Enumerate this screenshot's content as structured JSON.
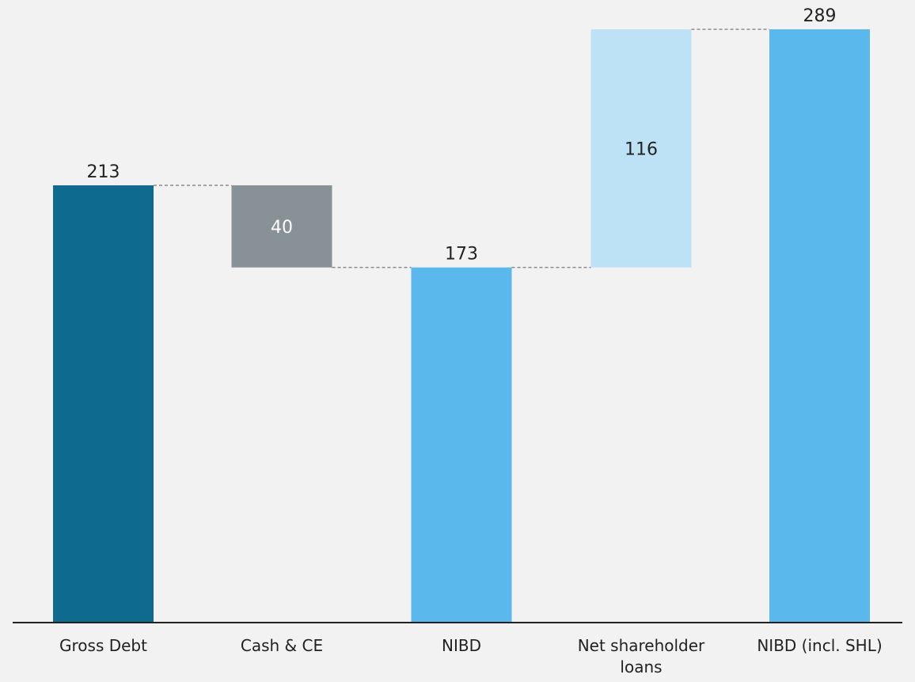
{
  "chart_data": {
    "type": "bar",
    "subtype": "waterfall",
    "title": "",
    "xlabel": "",
    "ylabel": "",
    "ylim": [
      0,
      289
    ],
    "grid": false,
    "legend": "none",
    "categories": [
      [
        "Gross Debt"
      ],
      [
        "Cash & CE"
      ],
      [
        "NIBD"
      ],
      [
        "Net shareholder",
        "loans"
      ],
      [
        "NIBD (incl. SHL)"
      ]
    ],
    "bars": [
      {
        "kind": "total",
        "start": 0,
        "end": 213,
        "label": "213",
        "label_position": "above",
        "color": "#0e6a8e"
      },
      {
        "kind": "decrease",
        "start": 173,
        "end": 213,
        "label": "40",
        "label_position": "inside",
        "color": "#879196"
      },
      {
        "kind": "total",
        "start": 0,
        "end": 173,
        "label": "173",
        "label_position": "above",
        "color": "#5bb8ed"
      },
      {
        "kind": "increase",
        "start": 173,
        "end": 289,
        "label": "116",
        "label_position": "inside",
        "color": "#bde2f6"
      },
      {
        "kind": "total",
        "start": 0,
        "end": 289,
        "label": "289",
        "label_position": "above",
        "color": "#5bb8ed"
      }
    ],
    "connectors": [
      {
        "from": 0,
        "to": 1,
        "value": 213
      },
      {
        "from": 1,
        "to": 2,
        "value": 173
      },
      {
        "from": 2,
        "to": 3,
        "value": 173
      },
      {
        "from": 3,
        "to": 4,
        "value": 289
      }
    ],
    "colors": {
      "background": "#f2f2f2",
      "axis": "#222222",
      "connector": "#8a8a8a",
      "text_dark": "#222222",
      "text_on_dark": "#ffffff"
    }
  }
}
